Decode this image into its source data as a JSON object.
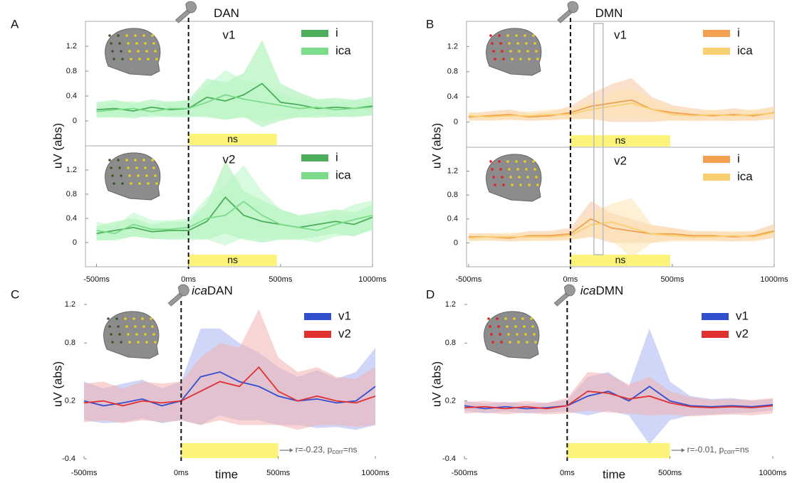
{
  "chart_data": [
    {
      "type": "line",
      "panel": "A",
      "title": "DAN",
      "ylabel": "uV (abs)",
      "x": [
        -500,
        -400,
        -300,
        -200,
        -100,
        0,
        100,
        200,
        300,
        400,
        500,
        600,
        700,
        800,
        900,
        1000
      ],
      "xlim": [
        -560,
        1000
      ],
      "xticks": [
        {
          "value": -500,
          "label": "-500ms"
        },
        {
          "value": 0,
          "label": "0ms"
        },
        {
          "value": 500,
          "label": "500ms"
        },
        {
          "value": 1000,
          "label": "1000ms"
        }
      ],
      "onset": 0,
      "dot_color": "#3a5a2a",
      "plots": [
        {
          "label": "v1",
          "ylim": [
            -0.4,
            1.6
          ],
          "yticks": [
            0,
            0.4,
            0.8,
            1.2
          ],
          "window": [
            0,
            480
          ],
          "window_label": "ns",
          "series": [
            {
              "name": "i",
              "color": "#4cae5a",
              "band_color": "#9ff0ad",
              "values": [
                0.18,
                0.2,
                0.16,
                0.22,
                0.18,
                0.2,
                0.38,
                0.32,
                0.42,
                0.6,
                0.3,
                0.26,
                0.2,
                0.22,
                0.2,
                0.24
              ],
              "errors": [
                0.12,
                0.14,
                0.12,
                0.13,
                0.12,
                0.14,
                0.3,
                0.3,
                0.35,
                0.7,
                0.3,
                0.2,
                0.15,
                0.15,
                0.14,
                0.15
              ]
            },
            {
              "name": "ica",
              "color": "#7ddc8c",
              "band_color": "#b8f5c2",
              "values": [
                0.15,
                0.18,
                0.2,
                0.15,
                0.2,
                0.2,
                0.3,
                0.42,
                0.35,
                0.3,
                0.25,
                0.2,
                0.22,
                0.18,
                0.2,
                0.22
              ],
              "errors": [
                0.1,
                0.12,
                0.12,
                0.1,
                0.12,
                0.12,
                0.25,
                0.4,
                0.3,
                0.3,
                0.2,
                0.15,
                0.12,
                0.12,
                0.12,
                0.12
              ]
            }
          ]
        },
        {
          "label": "v2",
          "ylim": [
            -0.4,
            1.6
          ],
          "yticks": [
            0,
            0.4,
            0.8,
            1.2
          ],
          "window": [
            0,
            480
          ],
          "window_label": "ns",
          "series": [
            {
              "name": "i",
              "color": "#4cae5a",
              "band_color": "#9ff0ad",
              "values": [
                0.15,
                0.2,
                0.25,
                0.18,
                0.2,
                0.2,
                0.35,
                0.75,
                0.45,
                0.35,
                0.3,
                0.25,
                0.3,
                0.35,
                0.3,
                0.42
              ],
              "errors": [
                0.12,
                0.15,
                0.15,
                0.12,
                0.15,
                0.15,
                0.3,
                0.6,
                0.4,
                0.35,
                0.25,
                0.2,
                0.2,
                0.2,
                0.2,
                0.2
              ]
            },
            {
              "name": "ica",
              "color": "#7ddc8c",
              "band_color": "#b8f5c2",
              "values": [
                0.2,
                0.15,
                0.3,
                0.22,
                0.22,
                0.25,
                0.4,
                0.45,
                0.68,
                0.45,
                0.3,
                0.25,
                0.2,
                0.3,
                0.38,
                0.45
              ],
              "errors": [
                0.15,
                0.12,
                0.2,
                0.15,
                0.15,
                0.15,
                0.35,
                0.5,
                0.6,
                0.4,
                0.25,
                0.2,
                0.2,
                0.2,
                0.25,
                0.25
              ]
            }
          ]
        }
      ]
    },
    {
      "type": "line",
      "panel": "B",
      "title": "DMN",
      "ylabel": "uV (abs)",
      "x": [
        -500,
        -400,
        -300,
        -200,
        -100,
        0,
        100,
        200,
        300,
        400,
        500,
        600,
        700,
        800,
        900,
        1000
      ],
      "xlim": [
        -510,
        1000
      ],
      "xticks": [
        {
          "value": -500,
          "label": "-500ms"
        },
        {
          "value": 0,
          "label": "0ms"
        },
        {
          "value": 500,
          "label": "500ms"
        },
        {
          "value": 1000,
          "label": "1000ms"
        }
      ],
      "onset": 0,
      "highlight": [
        115,
        160
      ],
      "dot_color": "#e02020",
      "plots": [
        {
          "label": "v1",
          "ylim": [
            -0.4,
            1.6
          ],
          "yticks": [
            0,
            0.4,
            0.8,
            1.2
          ],
          "window": [
            0,
            490
          ],
          "window_label": "ns",
          "series": [
            {
              "name": "i",
              "color": "#f0a050",
              "band_color": "#f8c8a0",
              "values": [
                0.08,
                0.1,
                0.12,
                0.08,
                0.1,
                0.15,
                0.25,
                0.3,
                0.35,
                0.2,
                0.15,
                0.12,
                0.1,
                0.12,
                0.1,
                0.15
              ],
              "errors": [
                0.06,
                0.07,
                0.08,
                0.06,
                0.07,
                0.1,
                0.2,
                0.3,
                0.35,
                0.2,
                0.12,
                0.1,
                0.08,
                0.1,
                0.08,
                0.1
              ]
            },
            {
              "name": "ica",
              "color": "#f8d070",
              "band_color": "#fbe3b0",
              "values": [
                0.1,
                0.08,
                0.1,
                0.1,
                0.12,
                0.12,
                0.2,
                0.25,
                0.3,
                0.2,
                0.12,
                0.1,
                0.12,
                0.1,
                0.12,
                0.14
              ],
              "errors": [
                0.06,
                0.06,
                0.07,
                0.07,
                0.08,
                0.08,
                0.15,
                0.2,
                0.25,
                0.15,
                0.1,
                0.08,
                0.08,
                0.08,
                0.08,
                0.1
              ]
            }
          ]
        },
        {
          "label": "v2",
          "ylim": [
            -0.4,
            1.6
          ],
          "yticks": [
            0,
            0.4,
            0.8,
            1.2
          ],
          "window": [
            0,
            490
          ],
          "window_label": "ns",
          "series": [
            {
              "name": "i",
              "color": "#f0a050",
              "band_color": "#f8c8a0",
              "values": [
                0.1,
                0.1,
                0.08,
                0.12,
                0.12,
                0.15,
                0.4,
                0.25,
                0.2,
                0.15,
                0.15,
                0.12,
                0.12,
                0.1,
                0.12,
                0.2
              ],
              "errors": [
                0.06,
                0.06,
                0.06,
                0.08,
                0.08,
                0.1,
                0.3,
                0.25,
                0.2,
                0.15,
                0.1,
                0.08,
                0.08,
                0.08,
                0.08,
                0.12
              ]
            },
            {
              "name": "ica",
              "color": "#f8d070",
              "band_color": "#fbe3b0",
              "values": [
                0.08,
                0.1,
                0.1,
                0.1,
                0.1,
                0.12,
                0.3,
                0.35,
                0.25,
                0.15,
                0.12,
                0.1,
                0.1,
                0.12,
                0.1,
                0.18
              ],
              "errors": [
                0.06,
                0.06,
                0.07,
                0.07,
                0.07,
                0.08,
                0.2,
                0.3,
                0.5,
                0.15,
                0.1,
                0.08,
                0.08,
                0.08,
                0.08,
                0.1
              ]
            }
          ]
        }
      ]
    },
    {
      "type": "line",
      "panel": "C",
      "title_prefix": "ica",
      "title": "DAN",
      "ylabel": "uV (abs)",
      "xlabel": "time",
      "x": [
        -500,
        -400,
        -300,
        -200,
        -100,
        0,
        100,
        200,
        300,
        400,
        500,
        600,
        700,
        800,
        900,
        1000
      ],
      "xlim": [
        -500,
        1000
      ],
      "xticks": [
        {
          "value": -500,
          "label": "-500ms"
        },
        {
          "value": 0,
          "label": "0ms"
        },
        {
          "value": 500,
          "label": "500ms"
        },
        {
          "value": 1000,
          "label": "1000ms"
        }
      ],
      "onset": 0,
      "dot_color": "#3a5a2a",
      "stat": {
        "prefix": "r=-0.23, p",
        "sub": "corr",
        "suffix": "=ns"
      },
      "plots": [
        {
          "ylim": [
            -0.4,
            1.2
          ],
          "yticks": [
            -0.4,
            0.2,
            0.8,
            1.2
          ],
          "window": [
            0,
            500
          ],
          "series": [
            {
              "name": "v1",
              "color": "#3050d0",
              "band_color": "#a8b4f0",
              "values": [
                0.2,
                0.15,
                0.18,
                0.22,
                0.15,
                0.2,
                0.45,
                0.5,
                0.4,
                0.35,
                0.25,
                0.2,
                0.22,
                0.18,
                0.2,
                0.35
              ],
              "errors": [
                0.2,
                0.18,
                0.2,
                0.2,
                0.18,
                0.2,
                0.5,
                0.45,
                0.4,
                0.35,
                0.3,
                0.25,
                0.3,
                0.25,
                0.3,
                0.4
              ]
            },
            {
              "name": "v2",
              "color": "#e03030",
              "band_color": "#f2b0b0",
              "values": [
                0.18,
                0.2,
                0.15,
                0.2,
                0.18,
                0.2,
                0.3,
                0.4,
                0.35,
                0.55,
                0.3,
                0.2,
                0.25,
                0.2,
                0.18,
                0.25
              ],
              "errors": [
                0.2,
                0.2,
                0.18,
                0.2,
                0.2,
                0.2,
                0.35,
                0.4,
                0.4,
                0.6,
                0.35,
                0.3,
                0.3,
                0.25,
                0.25,
                0.3
              ]
            }
          ]
        }
      ]
    },
    {
      "type": "line",
      "panel": "D",
      "title_prefix": "ica",
      "title": "DMN",
      "ylabel": "uV (abs)",
      "xlabel": "time",
      "x": [
        -500,
        -400,
        -300,
        -200,
        -100,
        0,
        100,
        200,
        300,
        400,
        500,
        600,
        700,
        800,
        900,
        1000
      ],
      "xlim": [
        -500,
        1000
      ],
      "xticks": [
        {
          "value": -500,
          "label": "-500ms"
        },
        {
          "value": 0,
          "label": "0ms"
        },
        {
          "value": 500,
          "label": "500ms"
        },
        {
          "value": 1000,
          "label": "1000ms"
        }
      ],
      "onset": 0,
      "dot_color": "#e02020",
      "stat": {
        "prefix": "r=-0.01, p",
        "sub": "corr",
        "suffix": "=ns"
      },
      "plots": [
        {
          "ylim": [
            -0.4,
            1.2
          ],
          "yticks": [
            -0.4,
            0.2,
            0.8,
            1.2
          ],
          "window": [
            0,
            500
          ],
          "series": [
            {
              "name": "v1",
              "color": "#3050d0",
              "band_color": "#a8b4f0",
              "values": [
                0.15,
                0.12,
                0.14,
                0.12,
                0.13,
                0.15,
                0.25,
                0.3,
                0.2,
                0.35,
                0.2,
                0.15,
                0.14,
                0.15,
                0.14,
                0.16
              ],
              "errors": [
                0.05,
                0.05,
                0.05,
                0.05,
                0.05,
                0.06,
                0.2,
                0.2,
                0.15,
                0.6,
                0.2,
                0.1,
                0.08,
                0.08,
                0.06,
                0.06
              ]
            },
            {
              "name": "v2",
              "color": "#e03030",
              "band_color": "#f2b0b0",
              "values": [
                0.13,
                0.14,
                0.12,
                0.14,
                0.12,
                0.15,
                0.3,
                0.28,
                0.22,
                0.25,
                0.18,
                0.14,
                0.13,
                0.14,
                0.13,
                0.15
              ],
              "errors": [
                0.06,
                0.06,
                0.06,
                0.06,
                0.06,
                0.08,
                0.2,
                0.2,
                0.15,
                0.2,
                0.12,
                0.1,
                0.08,
                0.08,
                0.08,
                0.08
              ]
            }
          ]
        }
      ]
    }
  ]
}
